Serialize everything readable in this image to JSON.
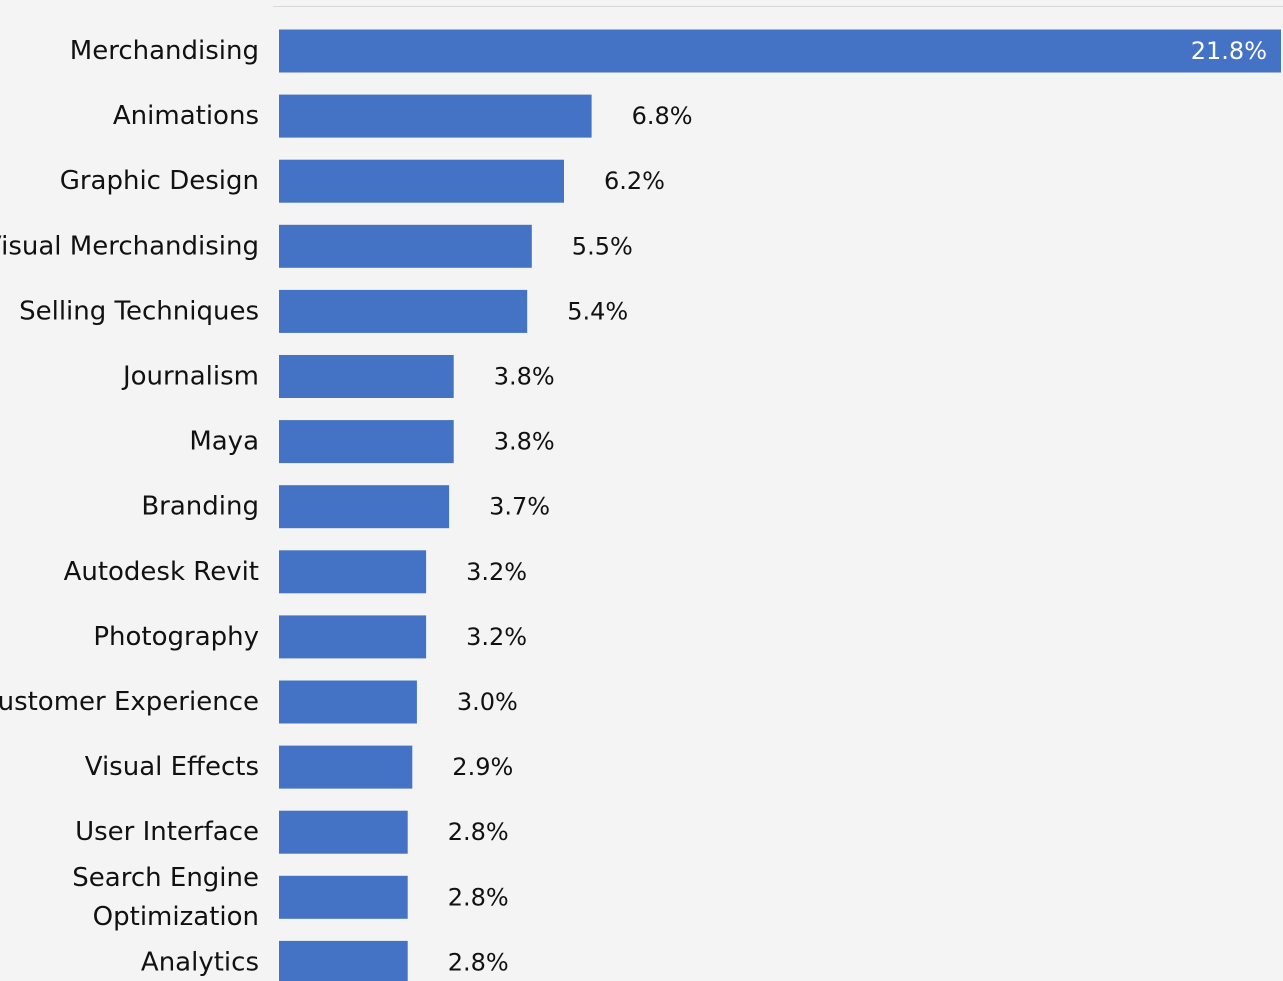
{
  "colors": {
    "background": "#f4f4f4",
    "bar": "#4472c4",
    "text": "#111111",
    "inside_label": "#ffffff",
    "top_rule": "#d9d9d9"
  },
  "chart_data": {
    "type": "bar",
    "orientation": "horizontal",
    "categories": [
      "Merchandising",
      "Animations",
      "Graphic Design",
      "Visual Merchandising",
      "Selling Techniques",
      "Journalism",
      "Maya",
      "Branding",
      "Autodesk Revit",
      "Photography",
      "Customer Experience",
      "Visual Effects",
      "User Interface",
      "Search Engine Optimization",
      "Analytics"
    ],
    "category_lines": [
      [
        "Merchandising"
      ],
      [
        "Animations"
      ],
      [
        "Graphic Design"
      ],
      [
        "Visual Merchandising"
      ],
      [
        "Selling Techniques"
      ],
      [
        "Journalism"
      ],
      [
        "Maya"
      ],
      [
        "Branding"
      ],
      [
        "Autodesk Revit"
      ],
      [
        "Photography"
      ],
      [
        "Customer Experience"
      ],
      [
        "Visual Effects"
      ],
      [
        "User Interface"
      ],
      [
        "Search Engine",
        "Optimization"
      ],
      [
        "Analytics"
      ]
    ],
    "values": [
      21.8,
      6.8,
      6.2,
      5.5,
      5.4,
      3.8,
      3.8,
      3.7,
      3.2,
      3.2,
      3.0,
      2.9,
      2.8,
      2.8,
      2.8
    ],
    "value_labels": [
      "21.8%",
      "6.8%",
      "6.2%",
      "5.5%",
      "5.4%",
      "3.8%",
      "3.8%",
      "3.7%",
      "3.2%",
      "3.2%",
      "3.0%",
      "2.9%",
      "2.8%",
      "2.8%",
      "2.8%"
    ],
    "xlim": [
      0,
      21.8
    ],
    "grid": false,
    "legend": "none",
    "title": "",
    "xlabel": "",
    "ylabel": ""
  }
}
